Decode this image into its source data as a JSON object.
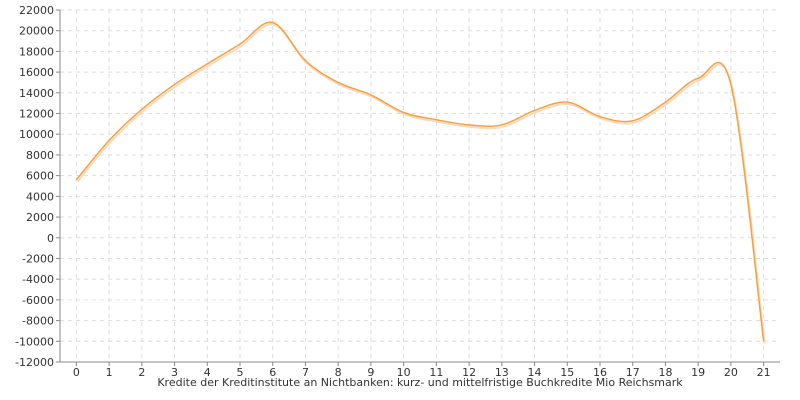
{
  "chart_data": {
    "type": "line",
    "title": "",
    "xlabel": "Kredite der Kreditinstitute an Nichtbanken: kurz- und mittelfristige Buchkredite Mio Reichsmark",
    "ylabel": "",
    "xlim": [
      -0.5,
      21.5
    ],
    "ylim": [
      -12000,
      22000
    ],
    "x_ticks": [
      0,
      1,
      2,
      3,
      4,
      5,
      6,
      7,
      8,
      9,
      10,
      11,
      12,
      13,
      14,
      15,
      16,
      17,
      18,
      19,
      20,
      21
    ],
    "y_ticks": [
      -12000,
      -10000,
      -8000,
      -6000,
      -4000,
      -2000,
      0,
      2000,
      4000,
      6000,
      8000,
      10000,
      12000,
      14000,
      16000,
      18000,
      20000,
      22000
    ],
    "grid": true,
    "legend": "none",
    "series": [
      {
        "name": "",
        "color": "#f7a042",
        "x": [
          0,
          1,
          2,
          3,
          4,
          5,
          6,
          7,
          8,
          9,
          10,
          11,
          12,
          13,
          14,
          15,
          16,
          17,
          18,
          19,
          20,
          21
        ],
        "y": [
          5600,
          9400,
          12400,
          14800,
          16800,
          18700,
          20800,
          17100,
          15000,
          13800,
          12100,
          11400,
          10900,
          10900,
          12300,
          13100,
          11700,
          11300,
          13100,
          15400,
          14800,
          -10000
        ]
      }
    ]
  }
}
